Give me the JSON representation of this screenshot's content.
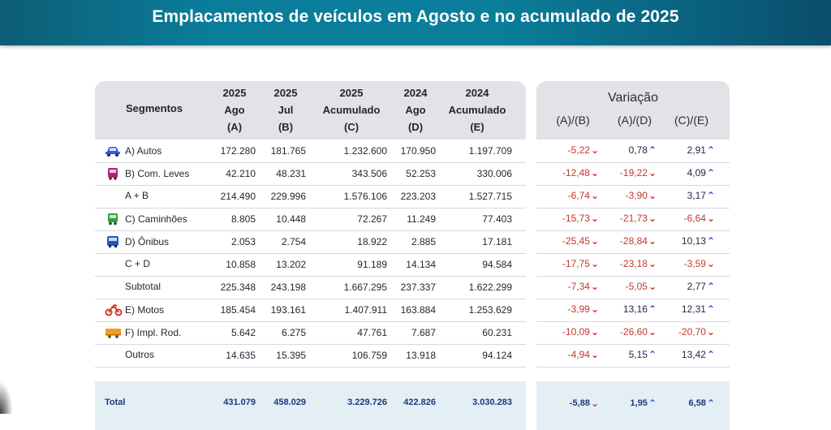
{
  "title": "Emplacamentos de veículos em Agosto e no acumulado de 2025",
  "header": {
    "segments": "Segmentos",
    "columns": [
      {
        "l1": "2025",
        "l2": "Ago",
        "l3": "(A)"
      },
      {
        "l1": "2025",
        "l2": "Jul",
        "l3": "(B)"
      },
      {
        "l1": "2025",
        "l2": "Acumulado",
        "l3": "(C)"
      },
      {
        "l1": "2024",
        "l2": "Ago",
        "l3": "(D)"
      },
      {
        "l1": "2024",
        "l2": "Acumulado",
        "l3": "(E)"
      }
    ],
    "variation_title": "Variação",
    "variation_columns": [
      "(A)/(B)",
      "(A)/(D)",
      "(C)/(E)"
    ]
  },
  "icons": {
    "car": "car-icon",
    "van": "van-icon",
    "truck": "truck-icon",
    "bus": "bus-icon",
    "motorcycle": "motorcycle-icon",
    "trailer": "trailer-icon"
  },
  "colors": {
    "negative": "#d62828",
    "positive": "#1f4fd0",
    "header_bg": "#e2e3e7",
    "banner": "#0a7e9a"
  },
  "rows": [
    {
      "segment": "A) Autos",
      "icon": "car",
      "a": "172.280",
      "b": "181.765",
      "c": "1.232.600",
      "d": "170.950",
      "e": "1.197.709",
      "v": [
        {
          "val": "-5,22",
          "dir": "down"
        },
        {
          "val": "0,78",
          "dir": "up"
        },
        {
          "val": "2,91",
          "dir": "up"
        }
      ]
    },
    {
      "segment": "B) Com. Leves",
      "icon": "van",
      "a": "42.210",
      "b": "48.231",
      "c": "343.506",
      "d": "52.253",
      "e": "330.006",
      "v": [
        {
          "val": "-12,48",
          "dir": "down"
        },
        {
          "val": "-19,22",
          "dir": "down"
        },
        {
          "val": "4,09",
          "dir": "up"
        }
      ]
    },
    {
      "segment": "A + B",
      "icon": "",
      "a": "214.490",
      "b": "229.996",
      "c": "1.576.106",
      "d": "223.203",
      "e": "1.527.715",
      "v": [
        {
          "val": "-6,74",
          "dir": "down"
        },
        {
          "val": "-3,90",
          "dir": "down"
        },
        {
          "val": "3,17",
          "dir": "up"
        }
      ]
    },
    {
      "segment": "C) Caminhões",
      "icon": "truck",
      "a": "8.805",
      "b": "10.448",
      "c": "72.267",
      "d": "11.249",
      "e": "77.403",
      "v": [
        {
          "val": "-15,73",
          "dir": "down"
        },
        {
          "val": "-21,73",
          "dir": "down"
        },
        {
          "val": "-6,64",
          "dir": "down"
        }
      ]
    },
    {
      "segment": "D) Ônibus",
      "icon": "bus",
      "a": "2.053",
      "b": "2.754",
      "c": "18.922",
      "d": "2.885",
      "e": "17.181",
      "v": [
        {
          "val": "-25,45",
          "dir": "down"
        },
        {
          "val": "-28,84",
          "dir": "down"
        },
        {
          "val": "10,13",
          "dir": "up"
        }
      ]
    },
    {
      "segment": "C + D",
      "icon": "",
      "a": "10.858",
      "b": "13.202",
      "c": "91.189",
      "d": "14.134",
      "e": "94.584",
      "v": [
        {
          "val": "-17,75",
          "dir": "down"
        },
        {
          "val": "-23,18",
          "dir": "down"
        },
        {
          "val": "-3,59",
          "dir": "down"
        }
      ]
    },
    {
      "segment": "Subtotal",
      "icon": "",
      "a": "225.348",
      "b": "243.198",
      "c": "1.667.295",
      "d": "237.337",
      "e": "1.622.299",
      "v": [
        {
          "val": "-7,34",
          "dir": "down"
        },
        {
          "val": "-5,05",
          "dir": "down"
        },
        {
          "val": "2,77",
          "dir": "up"
        }
      ]
    },
    {
      "segment": "E) Motos",
      "icon": "motorcycle",
      "a": "185.454",
      "b": "193.161",
      "c": "1.407.911",
      "d": "163.884",
      "e": "1.253.629",
      "v": [
        {
          "val": "-3,99",
          "dir": "down"
        },
        {
          "val": "13,16",
          "dir": "up"
        },
        {
          "val": "12,31",
          "dir": "up"
        }
      ]
    },
    {
      "segment": "F) Impl. Rod.",
      "icon": "trailer",
      "a": "5.642",
      "b": "6.275",
      "c": "47.761",
      "d": "7.687",
      "e": "60.231",
      "v": [
        {
          "val": "-10,09",
          "dir": "down"
        },
        {
          "val": "-26,60",
          "dir": "down"
        },
        {
          "val": "-20,70",
          "dir": "down"
        }
      ]
    },
    {
      "segment": "Outros",
      "icon": "",
      "a": "14.635",
      "b": "15.395",
      "c": "106.759",
      "d": "13.918",
      "e": "94.124",
      "v": [
        {
          "val": "-4,94",
          "dir": "down"
        },
        {
          "val": "5,15",
          "dir": "up"
        },
        {
          "val": "13,42",
          "dir": "up"
        }
      ]
    }
  ],
  "total": {
    "segment": "Total",
    "a": "431.079",
    "b": "458.029",
    "c": "3.229.726",
    "d": "422.826",
    "e": "3.030.283",
    "v": [
      {
        "val": "-5,88",
        "dir": "down"
      },
      {
        "val": "1,95",
        "dir": "up"
      },
      {
        "val": "6,58",
        "dir": "up"
      }
    ]
  }
}
